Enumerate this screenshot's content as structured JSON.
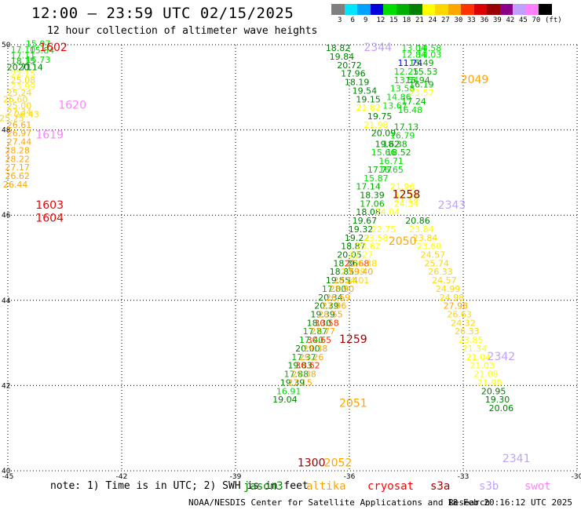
{
  "title": "12:00 – 23:59 UTC 02/15/2025",
  "subtitle": "12 hour collection of altimeter wave heights",
  "colorbar": {
    "unit": "(ft)",
    "labels": [
      "3",
      "6",
      "9",
      "12",
      "15",
      "18",
      "21",
      "24",
      "27",
      "30",
      "33",
      "36",
      "39",
      "42",
      "45",
      "70"
    ],
    "colors": [
      "#7f7f7f",
      "#00e5ff",
      "#00a0ff",
      "#0000dd",
      "#00dd00",
      "#00b000",
      "#008000",
      "#ffff00",
      "#ffd700",
      "#ffa500",
      "#ff3300",
      "#dd0000",
      "#990000",
      "#8b008b",
      "#c0a0ff",
      "#ff80ff",
      "#000000"
    ]
  },
  "axes": {
    "lon_ticks": [
      "-45",
      "-42",
      "-39",
      "-36",
      "-33",
      "-30"
    ],
    "lat_ticks": [
      "50",
      "48",
      "46",
      "44",
      "42",
      "40"
    ]
  },
  "note": "note: 1) Time is in UTC; 2) SWH is in feet",
  "legend": [
    {
      "name": "jason3",
      "color": "#008800"
    },
    {
      "name": "altika",
      "color": "#ffa500"
    },
    {
      "name": "cryosat",
      "color": "#ff0000"
    },
    {
      "name": "s3a",
      "color": "#aa0000"
    },
    {
      "name": "s3b",
      "color": "#c0a0ff"
    },
    {
      "name": "swot",
      "color": "#ff80ff"
    }
  ],
  "footer": {
    "credit": "NOAA/NESDIS Center for Satellite Applications and Research",
    "timestamp": "18 Feb 20:16:12 UTC 2025"
  },
  "chart_data": {
    "type": "scatter",
    "xlim": [
      -45,
      -30
    ],
    "ylim": [
      40,
      50
    ],
    "time_labels": [
      {
        "text": "1602",
        "lon": -43.8,
        "lat": 49.85,
        "color": "#ee0000"
      },
      {
        "text": "1620",
        "lon": -43.3,
        "lat": 48.5,
        "color": "#ff80ff"
      },
      {
        "text": "1619",
        "lon": -43.9,
        "lat": 47.8,
        "color": "#ff80ff"
      },
      {
        "text": "1603",
        "lon": -43.9,
        "lat": 46.15,
        "color": "#ee0000"
      },
      {
        "text": "1604",
        "lon": -43.9,
        "lat": 45.85,
        "color": "#ee0000"
      },
      {
        "text": "2344",
        "lon": -35.25,
        "lat": 49.85,
        "color": "#c0a0ff"
      },
      {
        "text": "2049",
        "lon": -32.7,
        "lat": 49.1,
        "color": "#ffa500"
      },
      {
        "text": "1258",
        "lon": -34.5,
        "lat": 46.4,
        "color": "#990000"
      },
      {
        "text": "2343",
        "lon": -33.3,
        "lat": 46.15,
        "color": "#c0a0ff"
      },
      {
        "text": "2050",
        "lon": -34.6,
        "lat": 45.3,
        "color": "#ffa500"
      },
      {
        "text": "1259",
        "lon": -35.9,
        "lat": 43.0,
        "color": "#990000"
      },
      {
        "text": "2342",
        "lon": -32.0,
        "lat": 42.6,
        "color": "#c0a0ff"
      },
      {
        "text": "2051",
        "lon": -35.9,
        "lat": 41.5,
        "color": "#ffa500"
      },
      {
        "text": "1300",
        "lon": -37.0,
        "lat": 40.1,
        "color": "#990000"
      },
      {
        "text": "2052",
        "lon": -36.3,
        "lat": 40.1,
        "color": "#ffa500"
      },
      {
        "text": "2341",
        "lon": -31.6,
        "lat": 40.2,
        "color": "#c0a0ff"
      }
    ],
    "tracks": [
      {
        "name": "west-pass",
        "points": [
          [
            "15.07",
            -44.2,
            49.95,
            "#00dd00"
          ],
          [
            "17.10",
            -44.6,
            49.82,
            "#00dd00"
          ],
          [
            "15.84",
            -44.1,
            49.8,
            "#00dd00"
          ],
          [
            "17.11",
            -44.6,
            49.68,
            "#00dd00"
          ],
          [
            "18.15",
            -44.6,
            49.55,
            "#00b000"
          ],
          [
            "15.73",
            -44.2,
            49.58,
            "#00dd00"
          ],
          [
            "20.71",
            -44.7,
            49.4,
            "#008000"
          ],
          [
            "20.14",
            -44.4,
            49.4,
            "#008000"
          ],
          [
            "22.15",
            -44.6,
            49.25,
            "#ffff00"
          ],
          [
            "25.08",
            -44.6,
            49.1,
            "#ffd700"
          ],
          [
            "23.99",
            -44.6,
            48.95,
            "#ffff00"
          ],
          [
            "25.24",
            -44.7,
            48.8,
            "#ffd700"
          ],
          [
            "26.60",
            -44.8,
            48.65,
            "#ffd700"
          ],
          [
            "25.00",
            -44.7,
            48.5,
            "#ffd700"
          ],
          [
            "27.34",
            -44.7,
            48.35,
            "#ffd700"
          ],
          [
            "26.43",
            -44.5,
            48.3,
            "#ffd700"
          ],
          [
            "25.25",
            -44.9,
            48.2,
            "#ffd700"
          ],
          [
            "26.61",
            -44.7,
            48.05,
            "#ffa500"
          ],
          [
            "26.97",
            -44.7,
            47.85,
            "#ffa500"
          ],
          [
            "27.44",
            -44.7,
            47.65,
            "#ffa500"
          ],
          [
            "28.28",
            -44.75,
            47.45,
            "#ffa500"
          ],
          [
            "28.22",
            -44.75,
            47.25,
            "#ffa500"
          ],
          [
            "27.17",
            -44.75,
            47.05,
            "#ffa500"
          ],
          [
            "26.62",
            -44.75,
            46.85,
            "#ffa500"
          ],
          [
            "26.44",
            -44.8,
            46.65,
            "#ffa500"
          ]
        ]
      },
      {
        "name": "s3b-pass",
        "points": [
          [
            "18.82",
            -36.3,
            49.85,
            "#008000"
          ],
          [
            "19.84",
            -36.2,
            49.65,
            "#008000"
          ],
          [
            "20.72",
            -36.0,
            49.45,
            "#008000"
          ],
          [
            "17.96",
            -35.9,
            49.25,
            "#008000"
          ],
          [
            "18.19",
            -35.8,
            49.05,
            "#008000"
          ],
          [
            "19.54",
            -35.6,
            48.85,
            "#008000"
          ],
          [
            "19.15",
            -35.5,
            48.65,
            "#008000"
          ],
          [
            "21.82",
            -35.5,
            48.45,
            "#ffff00"
          ],
          [
            "19.75",
            -35.2,
            48.25,
            "#008000"
          ],
          [
            "21.98",
            -35.3,
            48.05,
            "#ffff00"
          ],
          [
            "20.09",
            -35.1,
            47.85,
            "#008000"
          ],
          [
            "19.62",
            -35.0,
            47.6,
            "#008000"
          ],
          [
            "15.66",
            -35.1,
            47.4,
            "#00dd00"
          ],
          [
            "16.71",
            -34.9,
            47.2,
            "#00dd00"
          ],
          [
            "17.77",
            -35.2,
            47.0,
            "#00b000"
          ],
          [
            "15.87",
            -35.3,
            46.8,
            "#00dd00"
          ],
          [
            "17.14",
            -35.5,
            46.6,
            "#00b000"
          ],
          [
            "18.39",
            -35.4,
            46.4,
            "#008000"
          ],
          [
            "17.06",
            -35.4,
            46.2,
            "#00b000"
          ],
          [
            "18.08",
            -35.5,
            46.0,
            "#008000"
          ],
          [
            "19.67",
            -35.6,
            45.8,
            "#008000"
          ],
          [
            "19.32",
            -35.7,
            45.6,
            "#008000"
          ],
          [
            "19.22",
            -35.8,
            45.4,
            "#008000"
          ],
          [
            "18.87",
            -35.9,
            45.2,
            "#008000"
          ],
          [
            "20.05",
            -36.0,
            45.0,
            "#008000"
          ],
          [
            "18.36",
            -36.1,
            44.8,
            "#008000"
          ],
          [
            "18.85",
            -36.2,
            44.6,
            "#008000"
          ],
          [
            "19.55",
            -36.3,
            44.4,
            "#008000"
          ],
          [
            "17.00",
            -36.4,
            44.2,
            "#00b000"
          ],
          [
            "20.34",
            -36.5,
            44.0,
            "#008000"
          ],
          [
            "20.39",
            -36.6,
            43.8,
            "#008000"
          ],
          [
            "19.39",
            -36.7,
            43.6,
            "#008000"
          ],
          [
            "18.30",
            -36.8,
            43.4,
            "#008000"
          ],
          [
            "17.87",
            -36.9,
            43.2,
            "#00b000"
          ],
          [
            "17.40",
            -37.0,
            43.0,
            "#00b000"
          ],
          [
            "20.00",
            -37.1,
            42.8,
            "#008000"
          ],
          [
            "17.37",
            -37.2,
            42.6,
            "#00b000"
          ],
          [
            "19.83",
            -37.3,
            42.4,
            "#008000"
          ],
          [
            "17.88",
            -37.4,
            42.2,
            "#00b000"
          ],
          [
            "19.39",
            -37.5,
            42.0,
            "#008000"
          ],
          [
            "16.91",
            -37.6,
            41.8,
            "#00dd00"
          ],
          [
            "19.04",
            -37.7,
            41.6,
            "#008000"
          ]
        ]
      },
      {
        "name": "cryosat-pass",
        "points": [
          [
            "21.68",
            -35.8,
            44.8,
            "#ff3300"
          ],
          [
            "23.39",
            -35.9,
            44.6,
            "#ffd700"
          ],
          [
            "28.14",
            -36.1,
            44.4,
            "#ffa500"
          ],
          [
            "28.90",
            -36.2,
            44.2,
            "#ffa500"
          ],
          [
            "26.69",
            -36.3,
            44.0,
            "#ffa500"
          ],
          [
            "27.96",
            -36.4,
            43.8,
            "#ffa500"
          ],
          [
            "28.55",
            -36.5,
            43.6,
            "#ffa500"
          ],
          [
            "30.58",
            -36.6,
            43.4,
            "#ff3300"
          ],
          [
            "27.77",
            -36.7,
            43.2,
            "#ffa500"
          ],
          [
            "30.65",
            -36.8,
            43.0,
            "#ff3300"
          ],
          [
            "29.38",
            -36.9,
            42.8,
            "#ffa500"
          ],
          [
            "29.26",
            -37.0,
            42.6,
            "#ffa500"
          ],
          [
            "30.62",
            -37.1,
            42.4,
            "#ff3300"
          ],
          [
            "29.38",
            -37.2,
            42.2,
            "#ffa500"
          ],
          [
            "27.15",
            -37.3,
            42.0,
            "#ffa500"
          ]
        ]
      },
      {
        "name": "altika-pass",
        "points": [
          [
            "22.75",
            -35.1,
            45.6,
            "#ffff00"
          ],
          [
            "23.58",
            -35.3,
            45.4,
            "#ffff00"
          ],
          [
            "23.62",
            -35.5,
            45.2,
            "#ffff00"
          ],
          [
            "22.27",
            -35.7,
            45.0,
            "#ffff00"
          ],
          [
            "26.38",
            -35.6,
            44.8,
            "#ffd700"
          ],
          [
            "29.40",
            -35.7,
            44.6,
            "#ffa500"
          ],
          [
            "24.01",
            -35.8,
            44.4,
            "#ffd700"
          ],
          [
            "21.96",
            -34.6,
            46.6,
            "#ffff00"
          ],
          [
            "22.35",
            -34.5,
            46.4,
            "#ffff00"
          ],
          [
            "24.34",
            -34.5,
            46.2,
            "#ffff00"
          ],
          [
            "24.04",
            -35.0,
            46.0,
            "#ffff00"
          ],
          [
            "20.86",
            -34.2,
            45.8,
            "#008000"
          ],
          [
            "23.84",
            -34.1,
            45.6,
            "#ffff00"
          ],
          [
            "23.84",
            -34.0,
            45.4,
            "#ffd700"
          ],
          [
            "23.60",
            -33.9,
            45.2,
            "#ffff00"
          ],
          [
            "24.57",
            -33.8,
            45.0,
            "#ffd700"
          ],
          [
            "25.74",
            -33.7,
            44.8,
            "#ffd700"
          ],
          [
            "26.33",
            -33.6,
            44.6,
            "#ffd700"
          ],
          [
            "24.57",
            -33.5,
            44.4,
            "#ffd700"
          ],
          [
            "24.99",
            -33.4,
            44.2,
            "#ffd700"
          ],
          [
            "24.98",
            -33.3,
            44.0,
            "#ffd700"
          ],
          [
            "27.98",
            -33.2,
            43.8,
            "#ffa500"
          ],
          [
            "26.63",
            -33.1,
            43.6,
            "#ffd700"
          ],
          [
            "24.32",
            -33.0,
            43.4,
            "#ffd700"
          ],
          [
            "26.33",
            -32.9,
            43.2,
            "#ffd700"
          ],
          [
            "23.85",
            -32.8,
            43.0,
            "#ffff00"
          ],
          [
            "21.34",
            -32.7,
            42.8,
            "#ffff00"
          ],
          [
            "21.04",
            -32.6,
            42.6,
            "#ffff00"
          ],
          [
            "21.03",
            -32.5,
            42.4,
            "#ffff00"
          ],
          [
            "21.08",
            -32.4,
            42.2,
            "#ffff00"
          ],
          [
            "21.90",
            -32.3,
            42.0,
            "#ffff00"
          ],
          [
            "20.95",
            -32.2,
            41.8,
            "#008000"
          ],
          [
            "19.30",
            -32.1,
            41.6,
            "#008000"
          ],
          [
            "20.06",
            -32.0,
            41.4,
            "#008000"
          ]
        ]
      },
      {
        "name": "northeast-pass",
        "points": [
          [
            "13.04",
            -34.3,
            49.85,
            "#00dd00"
          ],
          [
            "14.58",
            -33.9,
            49.85,
            "#00dd00"
          ],
          [
            "12.84",
            -34.3,
            49.7,
            "#00dd00"
          ],
          [
            "14.03",
            -33.9,
            49.7,
            "#00dd00"
          ],
          [
            "11.74",
            -34.4,
            49.5,
            "#0000dd"
          ],
          [
            "15.49",
            -34.1,
            49.5,
            "#00b000"
          ],
          [
            "12.25",
            -34.5,
            49.3,
            "#00dd00"
          ],
          [
            "15.53",
            -34.0,
            49.3,
            "#00b000"
          ],
          [
            "13.54",
            -34.5,
            49.1,
            "#00dd00"
          ],
          [
            "15.94",
            -34.2,
            49.1,
            "#00b000"
          ],
          [
            "16.19",
            -34.1,
            49.0,
            "#00b000"
          ],
          [
            "13.58",
            -34.6,
            48.9,
            "#00dd00"
          ],
          [
            "23.57",
            -34.1,
            48.8,
            "#ffff00"
          ],
          [
            "14.86",
            -34.7,
            48.7,
            "#00dd00"
          ],
          [
            "17.24",
            -34.3,
            48.6,
            "#00b000"
          ],
          [
            "13.67",
            -34.8,
            48.5,
            "#00dd00"
          ],
          [
            "16.48",
            -34.4,
            48.4,
            "#00dd00"
          ],
          [
            "17.13",
            -34.5,
            48.0,
            "#00b000"
          ],
          [
            "16.79",
            -34.6,
            47.8,
            "#00dd00"
          ],
          [
            "18.38",
            -34.8,
            47.6,
            "#00b000"
          ],
          [
            "18.52",
            -34.7,
            47.4,
            "#00b000"
          ],
          [
            "16.65",
            -34.9,
            47.0,
            "#00dd00"
          ],
          [
            "21.18",
            -34.5,
            46.3,
            "#ffff00"
          ]
        ]
      }
    ]
  }
}
